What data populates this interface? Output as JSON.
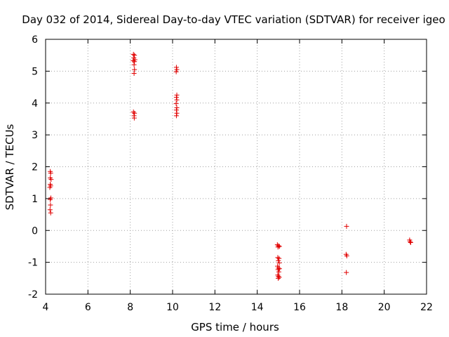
{
  "chart_data": {
    "type": "scatter",
    "title": "Day 032 of 2014, Sidereal Day-to-day VTEC variation (SDTVAR) for receiver igeo",
    "xlabel": "GPS time / hours",
    "ylabel": "SDTVAR / TECUs",
    "xlim": [
      4,
      22
    ],
    "ylim": [
      -2,
      6
    ],
    "xticks": [
      "4",
      "6",
      "8",
      "10",
      "12",
      "14",
      "16",
      "18",
      "20",
      "22"
    ],
    "yticks": [
      "6",
      "5",
      "4",
      "3",
      "2",
      "1",
      "0",
      "-1",
      "-2"
    ],
    "grid": true,
    "marker": "+",
    "color": "#e00000",
    "series": [
      {
        "name": "SDTVAR",
        "points": [
          [
            4.22,
            1.85
          ],
          [
            4.24,
            1.8
          ],
          [
            4.22,
            1.65
          ],
          [
            4.26,
            1.6
          ],
          [
            4.22,
            1.45
          ],
          [
            4.24,
            1.4
          ],
          [
            4.2,
            1.35
          ],
          [
            4.25,
            1.02
          ],
          [
            4.22,
            0.97
          ],
          [
            4.23,
            0.8
          ],
          [
            4.21,
            0.65
          ],
          [
            4.24,
            0.55
          ],
          [
            8.15,
            5.53
          ],
          [
            8.2,
            5.5
          ],
          [
            8.17,
            5.42
          ],
          [
            8.22,
            5.36
          ],
          [
            8.14,
            5.33
          ],
          [
            8.2,
            5.3
          ],
          [
            8.18,
            5.2
          ],
          [
            8.2,
            5.05
          ],
          [
            8.18,
            4.93
          ],
          [
            8.15,
            3.72
          ],
          [
            8.2,
            3.68
          ],
          [
            8.18,
            3.6
          ],
          [
            8.19,
            3.53
          ],
          [
            10.18,
            5.12
          ],
          [
            10.2,
            5.05
          ],
          [
            10.17,
            4.98
          ],
          [
            10.2,
            4.25
          ],
          [
            10.18,
            4.18
          ],
          [
            10.2,
            4.1
          ],
          [
            10.17,
            3.98
          ],
          [
            10.2,
            3.85
          ],
          [
            10.18,
            3.78
          ],
          [
            10.2,
            3.68
          ],
          [
            10.18,
            3.6
          ],
          [
            14.95,
            -0.45
          ],
          [
            15.0,
            -0.48
          ],
          [
            15.05,
            -0.5
          ],
          [
            14.98,
            -0.52
          ],
          [
            14.97,
            -0.85
          ],
          [
            15.03,
            -0.88
          ],
          [
            15.0,
            -0.95
          ],
          [
            15.04,
            -1.02
          ],
          [
            14.96,
            -1.12
          ],
          [
            15.0,
            -1.18
          ],
          [
            15.05,
            -1.2
          ],
          [
            14.98,
            -1.23
          ],
          [
            15.02,
            -1.3
          ],
          [
            14.97,
            -1.4
          ],
          [
            15.0,
            -1.44
          ],
          [
            15.04,
            -1.47
          ],
          [
            14.99,
            -1.5
          ],
          [
            18.22,
            0.13
          ],
          [
            18.2,
            -0.75
          ],
          [
            18.23,
            -0.8
          ],
          [
            18.21,
            -1.32
          ],
          [
            21.2,
            -0.3
          ],
          [
            21.22,
            -0.35
          ],
          [
            21.25,
            -0.38
          ]
        ]
      }
    ]
  }
}
